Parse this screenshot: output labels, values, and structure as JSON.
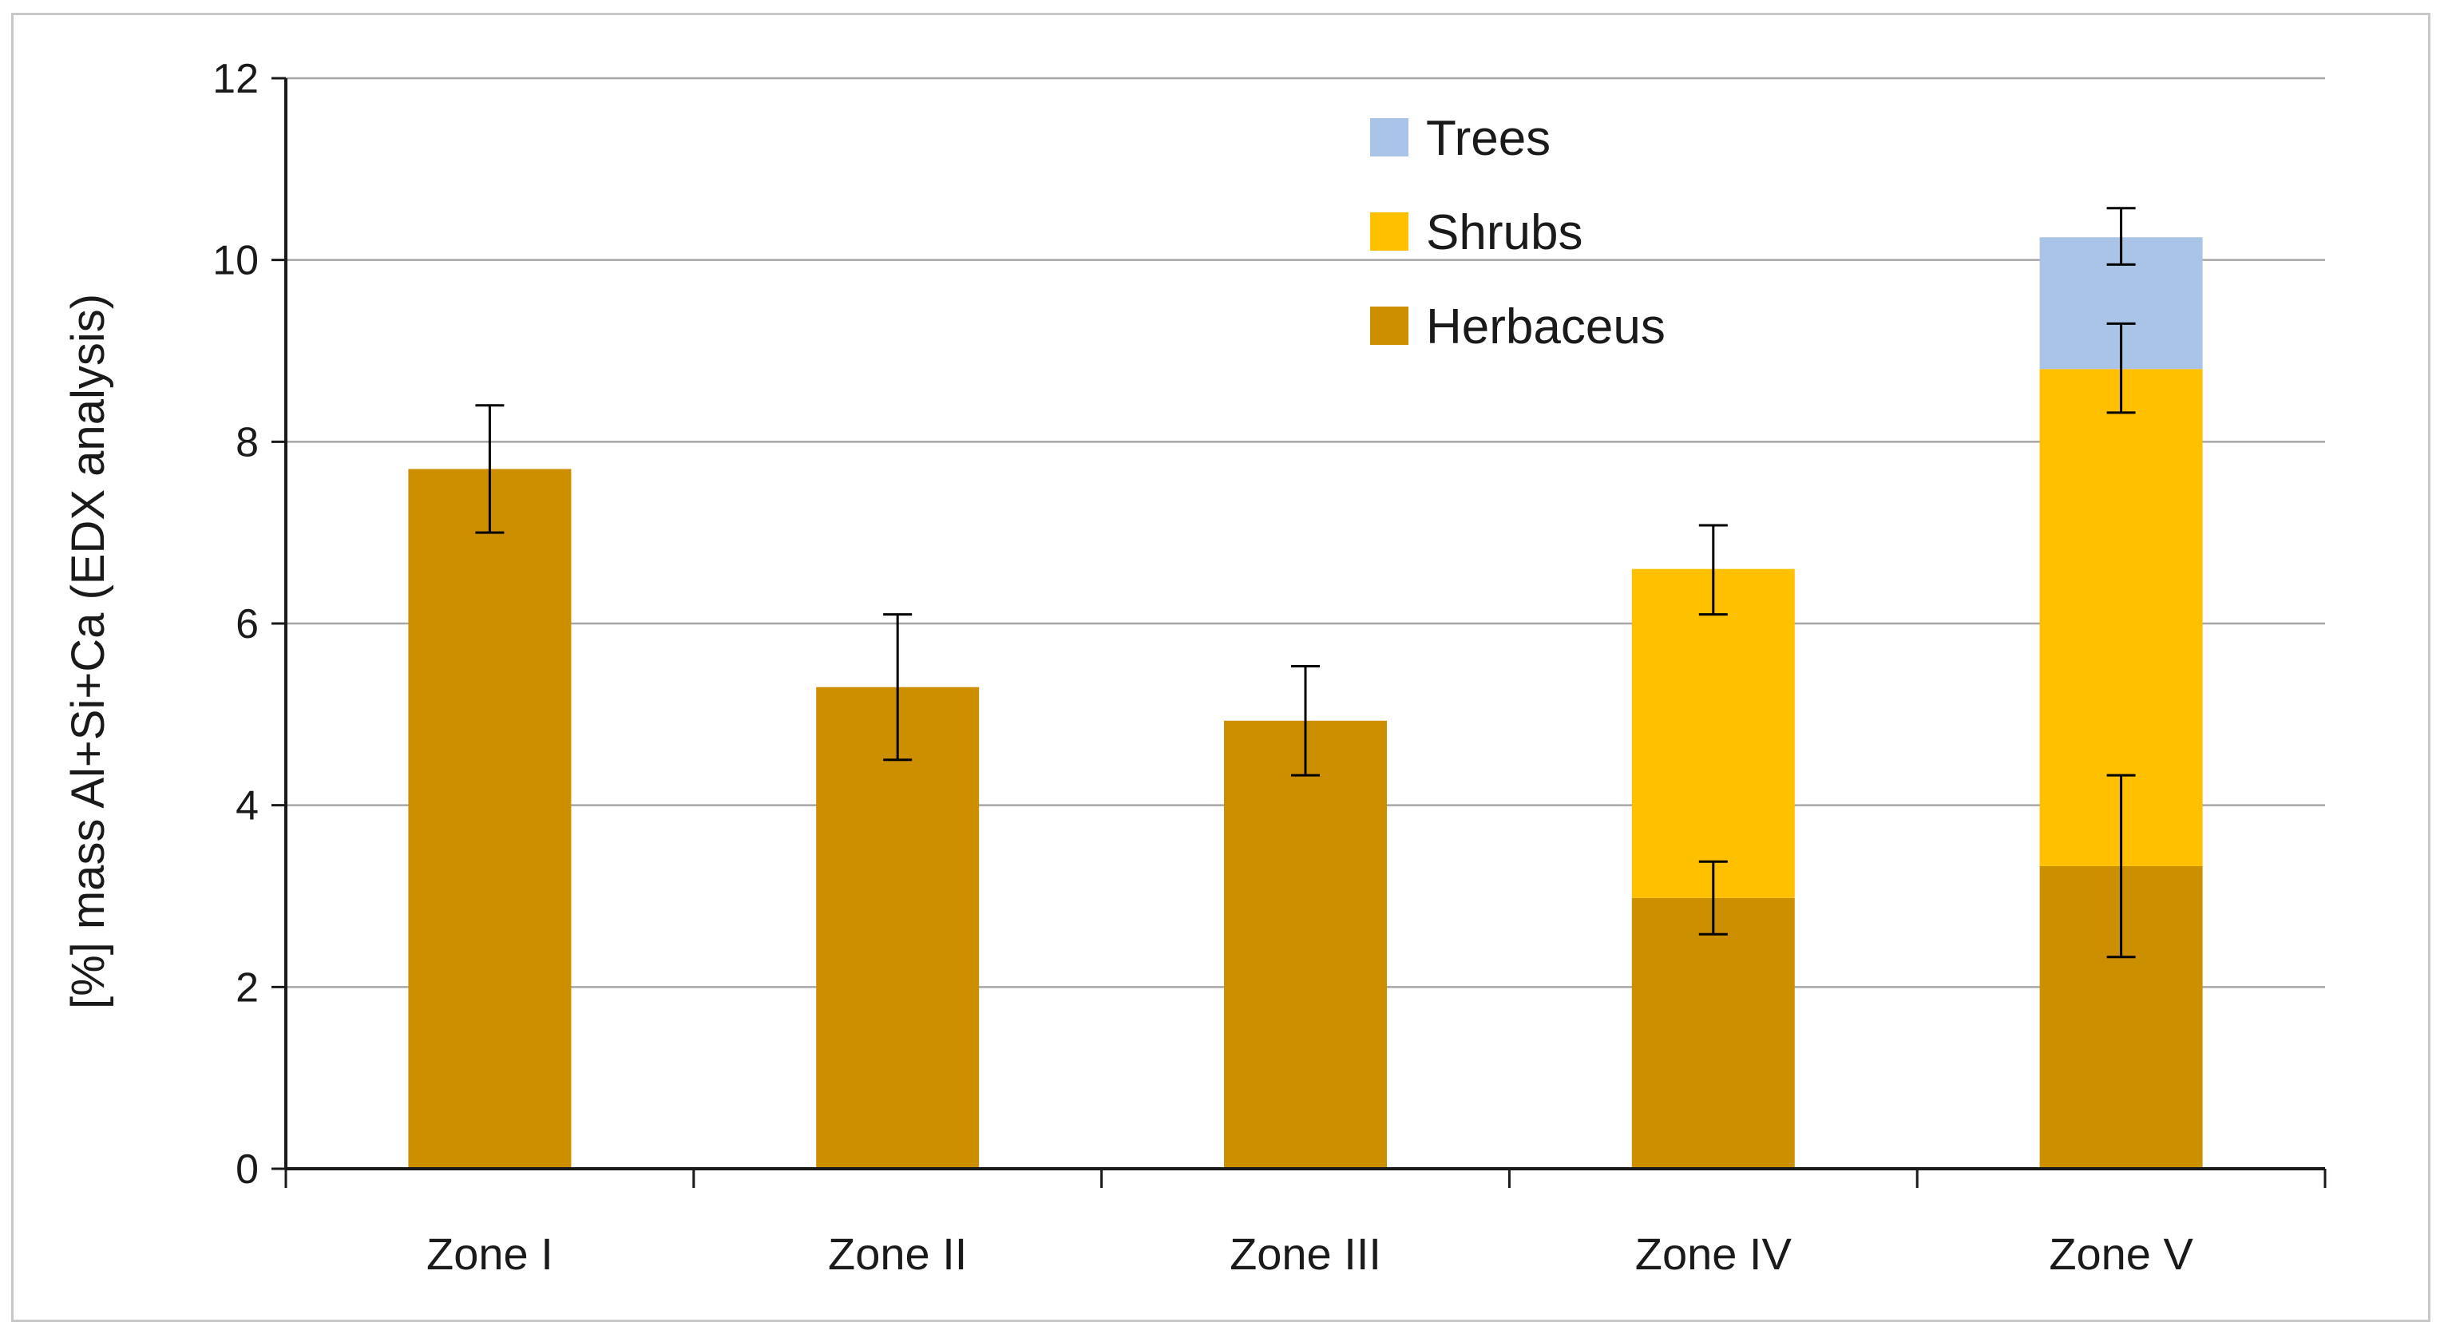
{
  "chart_data": {
    "type": "bar",
    "stacked": true,
    "title": "",
    "xlabel": "",
    "ylabel": "[%] mass Al+Si+Ca (EDX analysis)",
    "ylim": [
      0,
      12
    ],
    "yticks": [
      0,
      2,
      4,
      6,
      8,
      10,
      12
    ],
    "grid": true,
    "legend_position": "top-center",
    "categories": [
      "Zone I",
      "Zone II",
      "Zone III",
      "Zone IV",
      "Zone V"
    ],
    "series": [
      {
        "name": "Herbaceus",
        "color": "#cc8f00",
        "values": [
          7.7,
          5.3,
          4.93,
          2.98,
          3.33
        ],
        "error_totals": [
          7.7,
          5.3,
          4.93,
          2.98,
          3.33
        ],
        "error_minus": [
          0.7,
          0.8,
          0.6,
          0.4,
          1.0
        ],
        "error_plus": [
          0.7,
          0.8,
          0.6,
          0.4,
          1.0
        ]
      },
      {
        "name": "Shrubs",
        "color": "#ffc000",
        "values": [
          0,
          0,
          0,
          3.62,
          5.47
        ],
        "error_totals": [
          null,
          null,
          null,
          6.6,
          8.8
        ],
        "error_minus": [
          null,
          null,
          null,
          0.5,
          0.48
        ],
        "error_plus": [
          null,
          null,
          null,
          0.48,
          0.5
        ]
      },
      {
        "name": "Trees",
        "color": "#a9c4e6",
        "values": [
          0,
          0,
          0,
          0,
          1.45
        ],
        "error_totals": [
          null,
          null,
          null,
          null,
          10.25
        ],
        "error_minus": [
          null,
          null,
          null,
          null,
          0.3
        ],
        "error_plus": [
          null,
          null,
          null,
          null,
          0.32
        ]
      }
    ],
    "legend_order": [
      "Trees",
      "Shrubs",
      "Herbaceus"
    ]
  }
}
